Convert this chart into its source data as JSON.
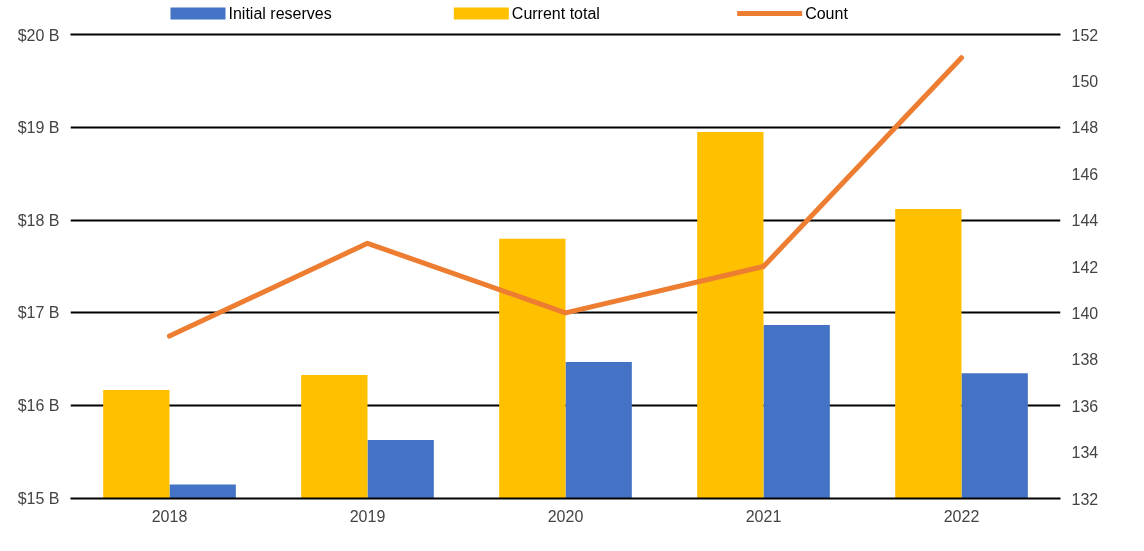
{
  "chart_data": {
    "type": "bar",
    "categories": [
      "2018",
      "2019",
      "2020",
      "2021",
      "2022"
    ],
    "series": [
      {
        "name": "Initial reserves",
        "color": "#4472c4",
        "values": [
          15.15,
          15.63,
          16.47,
          16.87,
          16.35
        ]
      },
      {
        "name": "Current total",
        "color": "#ffc000",
        "values": [
          16.17,
          16.33,
          17.8,
          18.95,
          18.12
        ]
      },
      {
        "name": "Count",
        "color": "#ed7d31",
        "type": "line",
        "axis": "y2",
        "values": [
          139,
          143,
          140,
          142,
          151
        ]
      }
    ],
    "ylim": [
      15,
      20
    ],
    "yticks": [
      {
        "value": 15,
        "label": "$15 B"
      },
      {
        "value": 16,
        "label": "$16 B"
      },
      {
        "value": 17,
        "label": "$17 B"
      },
      {
        "value": 18,
        "label": "$18 B"
      },
      {
        "value": 19,
        "label": "$19 B"
      },
      {
        "value": 20,
        "label": "$20 B"
      }
    ],
    "y2lim": [
      132,
      152
    ],
    "y2ticks": [
      132,
      134,
      136,
      138,
      140,
      142,
      144,
      146,
      148,
      150,
      152
    ],
    "grid": "y",
    "legend": "top"
  }
}
